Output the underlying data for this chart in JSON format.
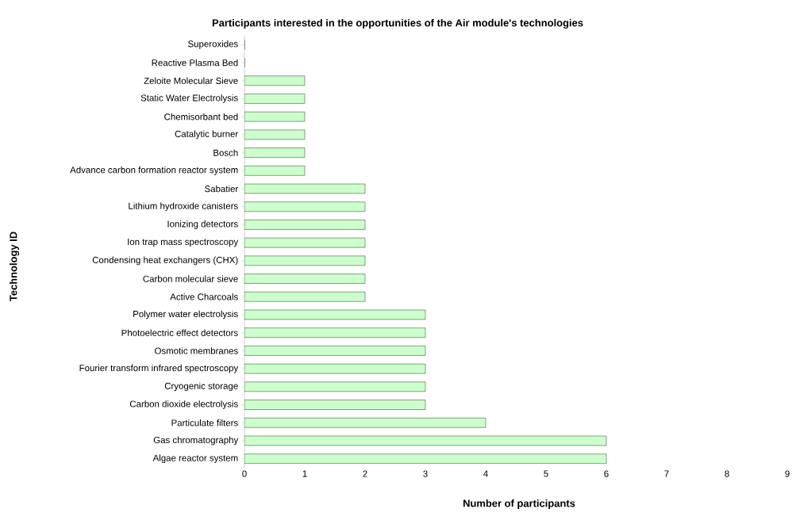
{
  "chart_data": {
    "type": "bar",
    "orientation": "horizontal",
    "title": "Participants interested in the opportunities of the Air module's technologies",
    "xlabel": "Number of participants",
    "ylabel": "Technology ID",
    "categories": [
      "Superoxides",
      "Reactive Plasma Bed",
      "Zeloite Molecular Sieve",
      "Static Water Electrolysis",
      "Chemisorbant bed",
      "Catalytic burner",
      "Bosch",
      "Advance carbon formation reactor system",
      "Sabatier",
      "Lithium hydroxide canisters",
      "Ionizing detectors",
      "Ion trap mass spectroscopy",
      "Condensing heat exchangers (CHX)",
      "Carbon molecular sieve",
      "Active Charcoals",
      "Polymer water electrolysis",
      "Photoelectric effect detectors",
      "Osmotic membranes",
      "Fourier transform infrared spectroscopy",
      "Cryogenic storage",
      "Carbon dioxide electrolysis",
      "Particulate filters",
      "Gas chromatography",
      "Algae reactor system"
    ],
    "values": [
      0,
      0,
      1,
      1,
      1,
      1,
      1,
      1,
      2,
      2,
      2,
      2,
      2,
      2,
      2,
      3,
      3,
      3,
      3,
      3,
      3,
      4,
      6,
      6
    ],
    "color": "#ccffcc",
    "xlim": [
      0,
      9
    ],
    "xticks": [
      0,
      1,
      2,
      3,
      4,
      5,
      6,
      7,
      8,
      9
    ],
    "grid": false
  }
}
